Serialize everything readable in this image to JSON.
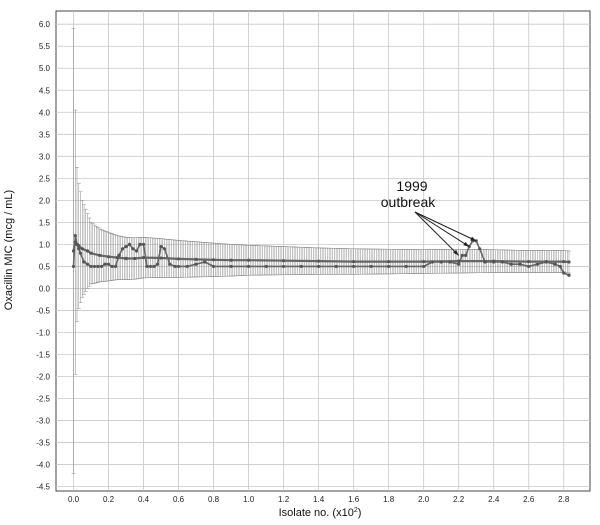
{
  "chart_data": {
    "type": "line",
    "xlabel": "Isolate no. (x10",
    "xlabel_sup": "2",
    "xlabel_tail": ")",
    "ylabel": "Oxacillin MIC (mcg / mL)",
    "xlim": [
      -0.1,
      2.95
    ],
    "ylim": [
      -4.6,
      6.3
    ],
    "x_ticks": [
      0.0,
      0.2,
      0.4,
      0.6,
      0.8,
      1.0,
      1.2,
      1.4,
      1.6,
      1.8,
      2.0,
      2.2,
      2.4,
      2.6,
      2.8
    ],
    "x_tick_labels": [
      "0.0",
      "0.2",
      "0.4",
      "0.6",
      "0.8",
      "1.0",
      "1.2",
      "1.4",
      "1.6",
      "1.8",
      "2.0",
      "2.2",
      "2.4",
      "2.6",
      "2.8"
    ],
    "y_ticks": [
      6.0,
      5.5,
      5.0,
      4.5,
      4.0,
      3.5,
      3.0,
      2.5,
      2.0,
      1.5,
      1.0,
      0.5,
      0.0,
      -0.5,
      -1.0,
      -1.5,
      -2.0,
      -2.5,
      -3.0,
      -3.5,
      -4.0,
      -4.5
    ],
    "y_tick_labels": [
      "6.0",
      "5.5",
      "5.0",
      "4.5",
      "4.0",
      "3.5",
      "3.0",
      "2.5",
      "2.0",
      "1.5",
      "1.0",
      "0.5",
      "0.0",
      "-0.5",
      "-1.0",
      "-1.5",
      "-2.0",
      "-2.5",
      "-3.0",
      "-3.5",
      "-4.0",
      "-4.5"
    ],
    "grid": true,
    "annotation": {
      "lines": [
        "1999",
        "outbreak"
      ],
      "targets": [
        [
          2.2,
          0.75
        ],
        [
          2.26,
          0.95
        ],
        [
          2.3,
          1.08
        ]
      ]
    },
    "series": [
      {
        "kind": "individual",
        "x": [
          0.0,
          0.01,
          0.02,
          0.03,
          0.04,
          0.06,
          0.08,
          0.1,
          0.12,
          0.14,
          0.16,
          0.18,
          0.2,
          0.22,
          0.24,
          0.26,
          0.28,
          0.3,
          0.32,
          0.34,
          0.36,
          0.38,
          0.4,
          0.42,
          0.44,
          0.46,
          0.48,
          0.5,
          0.52,
          0.55,
          0.58,
          0.6,
          0.65,
          0.7,
          0.75,
          0.8,
          0.9,
          1.0,
          1.1,
          1.2,
          1.3,
          1.4,
          1.5,
          1.6,
          1.7,
          1.8,
          1.9,
          2.0,
          2.05,
          2.1,
          2.15,
          2.2,
          2.22,
          2.24,
          2.26,
          2.28,
          2.3,
          2.32,
          2.35,
          2.4,
          2.45,
          2.5,
          2.55,
          2.6,
          2.65,
          2.7,
          2.75,
          2.78,
          2.8,
          2.83
        ],
        "values": [
          0.5,
          1.2,
          1.0,
          0.9,
          0.8,
          0.6,
          0.55,
          0.5,
          0.5,
          0.5,
          0.5,
          0.55,
          0.55,
          0.5,
          0.5,
          0.75,
          0.9,
          0.95,
          1.0,
          0.9,
          0.85,
          1.0,
          1.0,
          0.5,
          0.5,
          0.5,
          0.55,
          0.95,
          0.9,
          0.55,
          0.5,
          0.5,
          0.5,
          0.55,
          0.6,
          0.5,
          0.5,
          0.5,
          0.5,
          0.5,
          0.5,
          0.5,
          0.5,
          0.5,
          0.5,
          0.5,
          0.5,
          0.5,
          0.6,
          0.6,
          0.6,
          0.55,
          0.75,
          0.75,
          0.95,
          1.08,
          1.08,
          0.9,
          0.6,
          0.6,
          0.6,
          0.55,
          0.55,
          0.5,
          0.55,
          0.6,
          0.55,
          0.5,
          0.35,
          0.3
        ]
      },
      {
        "kind": "mean",
        "x": [
          0.0,
          0.01,
          0.02,
          0.03,
          0.05,
          0.08,
          0.1,
          0.15,
          0.2,
          0.25,
          0.3,
          0.35,
          0.4,
          0.5,
          0.6,
          0.7,
          0.8,
          0.9,
          1.0,
          1.2,
          1.4,
          1.6,
          1.8,
          2.0,
          2.2,
          2.4,
          2.6,
          2.7,
          2.8,
          2.83
        ],
        "values": [
          0.85,
          1.05,
          1.0,
          0.97,
          0.9,
          0.85,
          0.8,
          0.75,
          0.72,
          0.7,
          0.68,
          0.68,
          0.7,
          0.69,
          0.67,
          0.66,
          0.65,
          0.64,
          0.64,
          0.63,
          0.62,
          0.61,
          0.61,
          0.61,
          0.62,
          0.62,
          0.61,
          0.61,
          0.61,
          0.6
        ],
        "errors": [
          5.05,
          3.0,
          1.75,
          1.42,
          1.1,
          0.85,
          0.7,
          0.6,
          0.55,
          0.5,
          0.48,
          0.47,
          0.46,
          0.44,
          0.42,
          0.4,
          0.38,
          0.36,
          0.34,
          0.32,
          0.3,
          0.29,
          0.28,
          0.27,
          0.27,
          0.26,
          0.25,
          0.25,
          0.25,
          0.25
        ]
      }
    ]
  }
}
